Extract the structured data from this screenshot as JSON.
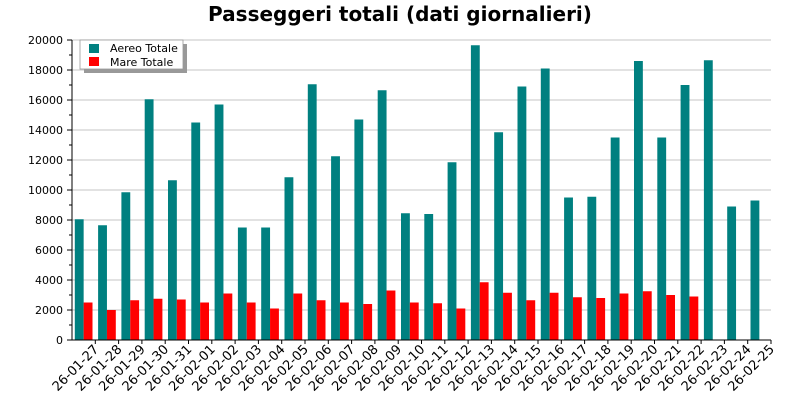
{
  "chart_data": {
    "type": "bar",
    "title": "Passeggeri totali (dati giornalieri)",
    "xlabel": "",
    "ylabel": "",
    "ylim": [
      0,
      20000
    ],
    "yticks": [
      0,
      2000,
      4000,
      6000,
      8000,
      10000,
      12000,
      14000,
      16000,
      18000,
      20000
    ],
    "grid": "horizontal",
    "legend_position": "top-left",
    "categories": [
      "26-01-27",
      "26-01-28",
      "26-01-29",
      "26-01-30",
      "26-01-31",
      "26-02-01",
      "26-02-02",
      "26-02-03",
      "26-02-04",
      "26-02-05",
      "26-02-06",
      "26-02-07",
      "26-02-08",
      "26-02-09",
      "26-02-10",
      "26-02-11",
      "26-02-12",
      "26-02-13",
      "26-02-14",
      "26-02-15",
      "26-02-16",
      "26-02-17",
      "26-02-18",
      "26-02-19",
      "26-02-20",
      "26-02-21",
      "26-02-22",
      "26-02-23",
      "26-02-24",
      "26-02-25"
    ],
    "series": [
      {
        "name": "Aereo Totale",
        "color": "#008080",
        "values": [
          8050,
          7650,
          9850,
          16050,
          10650,
          14500,
          15700,
          7500,
          7500,
          10850,
          17050,
          12250,
          14700,
          16650,
          8450,
          8400,
          11850,
          19650,
          13850,
          16900,
          18100,
          9500,
          9550,
          13500,
          18600,
          13500,
          17000,
          18650,
          8900,
          9300
        ]
      },
      {
        "name": "Mare Totale",
        "color": "#ff0000",
        "values": [
          2500,
          2000,
          2650,
          2750,
          2700,
          2500,
          3100,
          2500,
          2100,
          3100,
          2650,
          2500,
          2400,
          3300,
          2500,
          2450,
          2100,
          3850,
          3150,
          2650,
          3150,
          2850,
          2800,
          3100,
          3250,
          3000,
          2900,
          null,
          null,
          null
        ]
      }
    ]
  }
}
